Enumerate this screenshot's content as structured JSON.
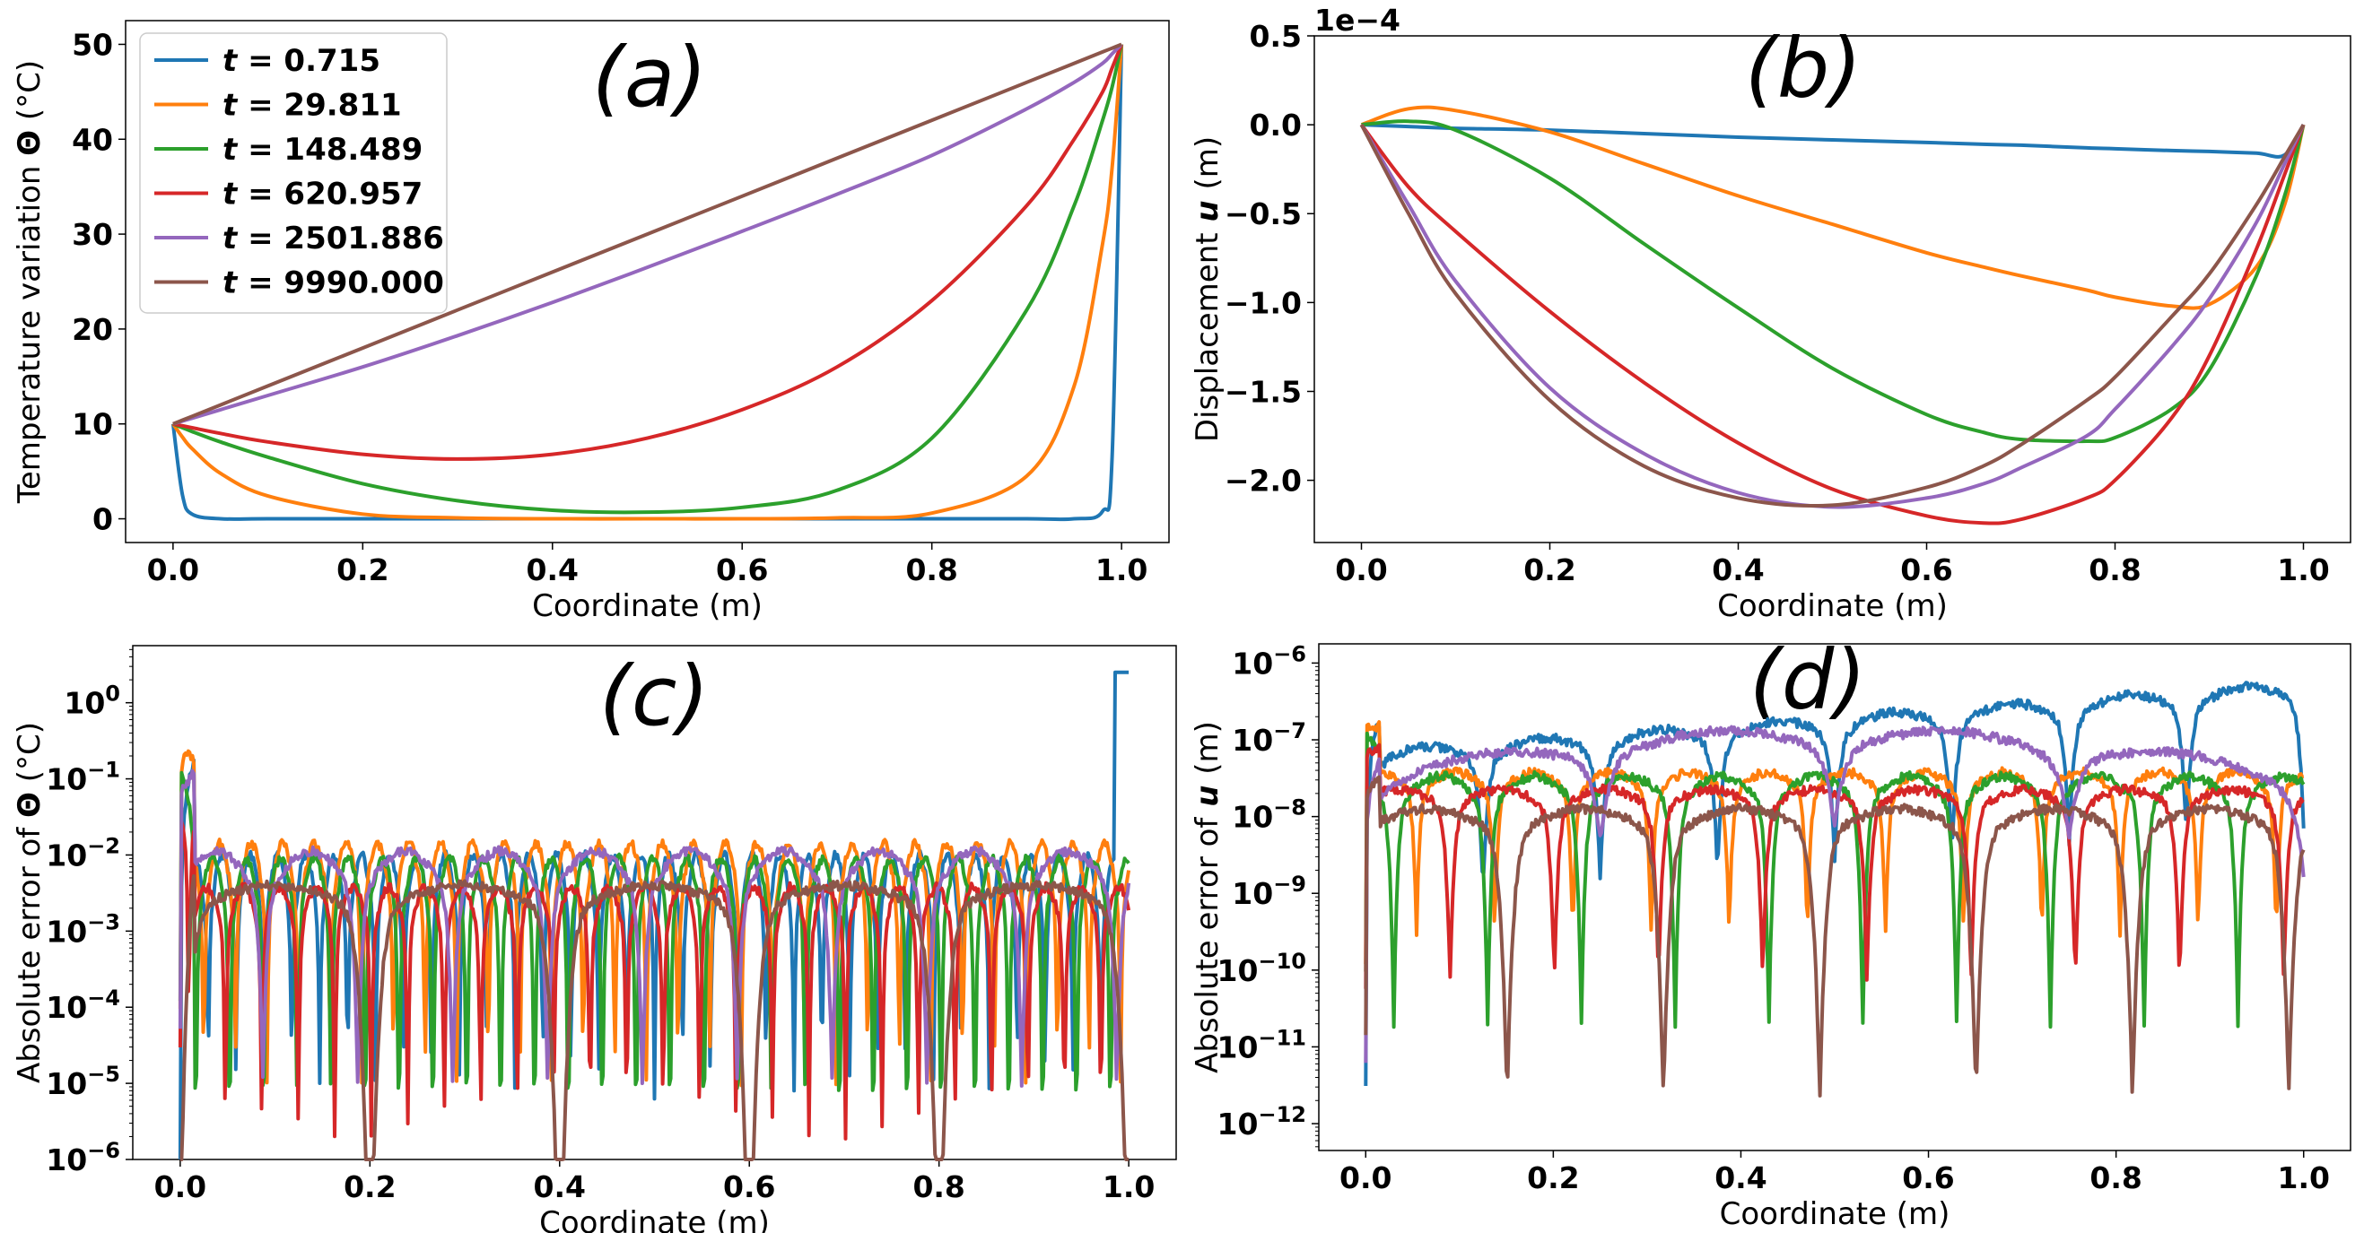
{
  "legend": [
    {
      "t_label": "t",
      "value": "= 0.715",
      "color": "#1f77b4"
    },
    {
      "t_label": "t",
      "value": "= 29.811",
      "color": "#ff7f0e"
    },
    {
      "t_label": "t",
      "value": "= 148.489",
      "color": "#2ca02c"
    },
    {
      "t_label": "t",
      "value": "= 620.957",
      "color": "#d62728"
    },
    {
      "t_label": "t",
      "value": "= 2501.886",
      "color": "#9467bd"
    },
    {
      "t_label": "t",
      "value": "= 9990.000",
      "color": "#8c564b"
    }
  ],
  "chart_data": [
    {
      "panel": "(a)",
      "type": "line",
      "xlabel": "Coordinate (m)",
      "ylabel": "Temperature variation Θ (°C)",
      "xlim": [
        -0.05,
        1.05
      ],
      "ylim": [
        -2.5,
        52.5
      ],
      "xticks": [
        "0.0",
        "0.2",
        "0.4",
        "0.6",
        "0.8",
        "1.0"
      ],
      "yticks": [
        "0",
        "10",
        "20",
        "30",
        "40",
        "50"
      ],
      "legend_position": "top-left",
      "x": [
        0,
        0.01,
        0.02,
        0.05,
        0.1,
        0.2,
        0.3,
        0.4,
        0.5,
        0.6,
        0.7,
        0.8,
        0.9,
        0.95,
        0.98,
        0.99,
        1.0
      ],
      "series": [
        {
          "name": "t = 0.715",
          "values": [
            10,
            2.5,
            0.5,
            0,
            0,
            0,
            0,
            0,
            0,
            0,
            0,
            0,
            0,
            0,
            0.8,
            6.5,
            50
          ]
        },
        {
          "name": "t = 29.811",
          "values": [
            10,
            8.6,
            7.4,
            4.8,
            2.4,
            0.5,
            0.1,
            0,
            0,
            0,
            0.1,
            0.6,
            4.5,
            14,
            29,
            37,
            50
          ]
        },
        {
          "name": "t = 148.489",
          "values": [
            10,
            9.6,
            9.2,
            8.1,
            6.5,
            3.7,
            1.9,
            0.9,
            0.7,
            1.2,
            3.0,
            8.5,
            22,
            33,
            42,
            45.5,
            50
          ]
        },
        {
          "name": "t = 620.957",
          "values": [
            10,
            9.8,
            9.6,
            9.0,
            8.1,
            6.8,
            6.3,
            6.8,
            8.5,
            11.5,
            16,
            23,
            33,
            40,
            45,
            47.5,
            50
          ]
        },
        {
          "name": "t = 2501.886",
          "values": [
            10,
            10.3,
            10.6,
            11.5,
            13,
            16,
            19.3,
            22.8,
            26.5,
            30.3,
            34.2,
            38.3,
            43.2,
            46,
            48,
            49,
            50
          ]
        },
        {
          "name": "t = 9990.000",
          "values": [
            10,
            10.4,
            10.8,
            12,
            14,
            18,
            22,
            26,
            30,
            34,
            38,
            42,
            46,
            48,
            49.2,
            49.6,
            50
          ]
        }
      ]
    },
    {
      "panel": "(b)",
      "type": "line",
      "xlabel": "Coordinate (m)",
      "ylabel": "Displacement u (m)",
      "scale_label": "1e−4",
      "xlim": [
        -0.05,
        1.05
      ],
      "ylim": [
        -2.35,
        0.5
      ],
      "y_scale_factor": 0.0001,
      "xticks": [
        "0.0",
        "0.2",
        "0.4",
        "0.6",
        "0.8",
        "1.0"
      ],
      "yticks": [
        "0.5",
        "0.0",
        "−0.5",
        "−1.0",
        "−1.5",
        "−2.0"
      ],
      "x": [
        0,
        0.05,
        0.1,
        0.2,
        0.3,
        0.4,
        0.5,
        0.6,
        0.66,
        0.7,
        0.77,
        0.8,
        0.86,
        0.9,
        0.95,
        0.98,
        1.0
      ],
      "series": [
        {
          "name": "t = 0.715",
          "values": [
            0,
            -0.01,
            -0.02,
            -0.03,
            -0.05,
            -0.07,
            -0.085,
            -0.1,
            -0.11,
            -0.115,
            -0.13,
            -0.135,
            -0.145,
            -0.15,
            -0.16,
            -0.17,
            0
          ]
        },
        {
          "name": "t = 29.811",
          "values": [
            0,
            0.09,
            0.08,
            -0.04,
            -0.22,
            -0.4,
            -0.56,
            -0.72,
            -0.8,
            -0.85,
            -0.93,
            -0.97,
            -1.02,
            -1.01,
            -0.8,
            -0.45,
            0
          ]
        },
        {
          "name": "t = 148.489",
          "values": [
            0,
            0.02,
            -0.03,
            -0.3,
            -0.67,
            -1.03,
            -1.37,
            -1.63,
            -1.73,
            -1.77,
            -1.78,
            -1.76,
            -1.6,
            -1.38,
            -0.85,
            -0.4,
            0
          ]
        },
        {
          "name": "t = 620.957",
          "values": [
            0,
            -0.35,
            -0.6,
            -1.05,
            -1.45,
            -1.79,
            -2.05,
            -2.2,
            -2.24,
            -2.22,
            -2.1,
            -2.0,
            -1.65,
            -1.3,
            -0.7,
            -0.28,
            0
          ]
        },
        {
          "name": "t = 2501.886",
          "values": [
            0,
            -0.45,
            -0.88,
            -1.48,
            -1.85,
            -2.07,
            -2.15,
            -2.1,
            -2.02,
            -1.93,
            -1.75,
            -1.6,
            -1.25,
            -0.98,
            -0.55,
            -0.22,
            0
          ]
        },
        {
          "name": "t = 9990.000",
          "values": [
            0,
            -0.5,
            -0.95,
            -1.55,
            -1.92,
            -2.1,
            -2.14,
            -2.04,
            -1.92,
            -1.8,
            -1.55,
            -1.42,
            -1.08,
            -0.84,
            -0.45,
            -0.18,
            0
          ]
        }
      ]
    },
    {
      "panel": "(c)",
      "type": "line",
      "xlabel": "Coordinate (m)",
      "ylabel": "Absolute error of Θ (°C)",
      "yscale": "log",
      "xlim": [
        -0.05,
        1.05
      ],
      "ylim_log10": [
        -6,
        0.75
      ],
      "xticks": [
        "0.0",
        "0.2",
        "0.4",
        "0.6",
        "0.8",
        "1.0"
      ],
      "yticks": [
        "10^0",
        "10^-1",
        "10^-2",
        "10^-3",
        "10^-4",
        "10^-5",
        "10^-6"
      ],
      "series": [
        {
          "name": "t = 0.715",
          "n_lobes": 34,
          "base_log": -2.6,
          "amp": 1.2,
          "dip": 1.0,
          "phase": 0.0
        },
        {
          "name": "t = 29.811",
          "n_lobes": 30,
          "base_log": -2.4,
          "amp": 1.1,
          "dip": 1.1,
          "phase": 0.8
        },
        {
          "name": "t = 148.489",
          "n_lobes": 28,
          "base_log": -2.6,
          "amp": 1.1,
          "dip": 1.6,
          "phase": 1.7
        },
        {
          "name": "t = 620.957",
          "n_lobes": 26,
          "base_log": -2.8,
          "amp": 0.75,
          "dip": 1.3,
          "phase": 2.4
        },
        {
          "name": "t = 2501.886",
          "n_lobes": 10,
          "base_log": -2.3,
          "amp": 0.7,
          "dip": 1.2,
          "phase": 0.4
        },
        {
          "name": "t = 9990.000",
          "n_lobes": 5,
          "base_log": -2.6,
          "amp": 0.4,
          "dip": 2.8,
          "phase": 0.0
        }
      ]
    },
    {
      "panel": "(d)",
      "type": "line",
      "xlabel": "Coordinate (m)",
      "ylabel": "Absolute error of u (m)",
      "yscale": "log",
      "xlim": [
        -0.05,
        1.05
      ],
      "ylim_log10": [
        -12.35,
        -5.75
      ],
      "xticks": [
        "0.0",
        "0.2",
        "0.4",
        "0.6",
        "0.8",
        "1.0"
      ],
      "yticks": [
        "10^-6",
        "10^-7",
        "10^-8",
        "10^-9",
        "10^-10",
        "10^-11",
        "10^-12"
      ],
      "series": [
        {
          "name": "t = 0.715",
          "n_lobes": 8,
          "base_log": -7.3,
          "amp": 0.3,
          "dip": 0.8,
          "phase": 0.0
        },
        {
          "name": "t = 29.811",
          "n_lobes": 12,
          "base_log": -7.6,
          "amp": 0.35,
          "dip": 0.9,
          "phase": 1.1
        },
        {
          "name": "t = 148.489",
          "n_lobes": 10,
          "base_log": -7.7,
          "amp": 0.45,
          "dip": 1.4,
          "phase": 2.2
        },
        {
          "name": "t = 620.957",
          "n_lobes": 9,
          "base_log": -7.8,
          "amp": 0.3,
          "dip": 1.1,
          "phase": 0.6
        },
        {
          "name": "t = 2501.886",
          "n_lobes": 4,
          "base_log": -7.0,
          "amp": 0.3,
          "dip": 0.5,
          "phase": 0.0
        },
        {
          "name": "t = 9990.000",
          "n_lobes": 6,
          "base_log": -8.1,
          "amp": 0.4,
          "dip": 1.7,
          "phase": 0.3
        }
      ]
    }
  ]
}
